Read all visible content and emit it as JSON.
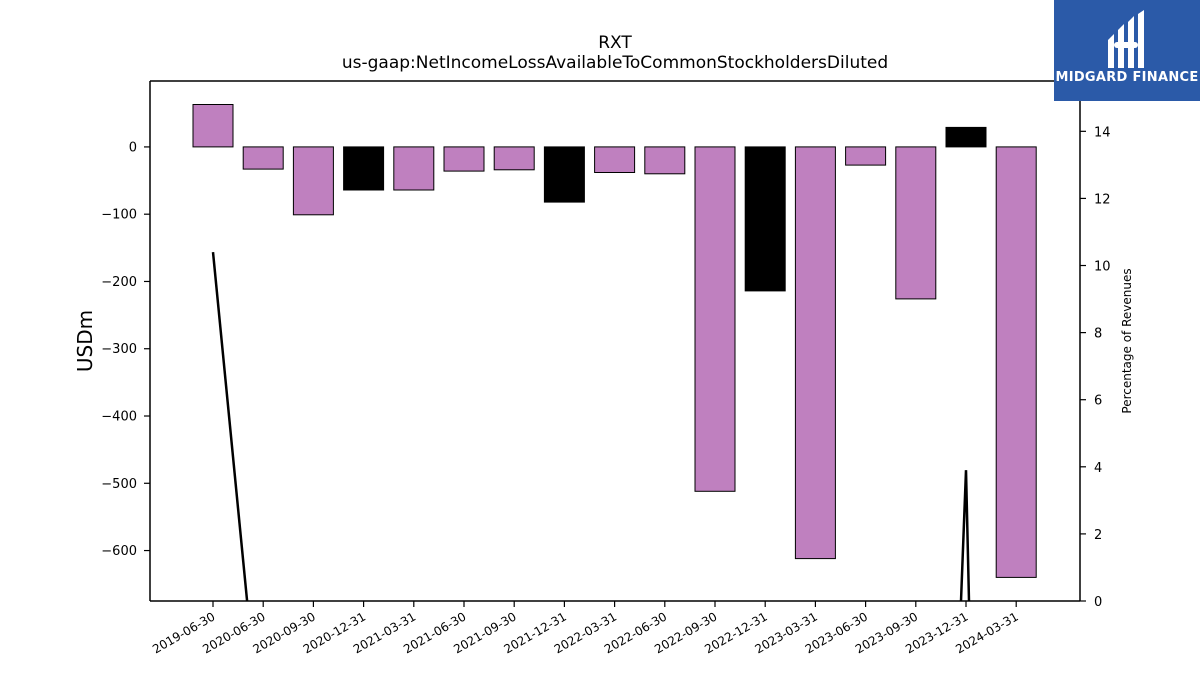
{
  "chart_data": {
    "type": "bar",
    "title": "RXT",
    "subtitle": "us-gaap:NetIncomeLossAvailableToCommonStockholdersDiluted",
    "ylabel": "USDm",
    "y2label": "Percentage of Revenues",
    "ylim": [
      -675,
      98
    ],
    "y2lim": [
      0,
      15.5
    ],
    "yticks": [
      0,
      -100,
      -200,
      -300,
      -400,
      -500,
      -600
    ],
    "y2ticks": [
      0,
      2,
      4,
      6,
      8,
      10,
      12,
      14
    ],
    "categories": [
      "2019-06-30",
      "2020-06-30",
      "2020-09-30",
      "2020-12-31",
      "2021-03-31",
      "2021-06-30",
      "2021-09-30",
      "2021-12-31",
      "2022-03-31",
      "2022-06-30",
      "2022-09-30",
      "2022-12-31",
      "2023-03-31",
      "2023-06-30",
      "2023-09-30",
      "2023-12-31",
      "2024-03-31"
    ],
    "values": [
      63,
      -33,
      -101,
      -64,
      -64,
      -36,
      -34,
      -82,
      -38,
      -40,
      -512,
      -214,
      -612,
      -27,
      -226,
      29,
      -640
    ],
    "bar_colors": [
      "#bf80bf",
      "#bf80bf",
      "#bf80bf",
      "#000000",
      "#bf80bf",
      "#bf80bf",
      "#bf80bf",
      "#000000",
      "#bf80bf",
      "#bf80bf",
      "#bf80bf",
      "#000000",
      "#bf80bf",
      "#bf80bf",
      "#bf80bf",
      "#000000",
      "#bf80bf"
    ],
    "line_series": {
      "segments": [
        [
          [
            0,
            10.4
          ],
          [
            0.68,
            0
          ]
        ],
        [
          [
            14.9,
            0
          ],
          [
            15.0,
            3.9
          ],
          [
            15.06,
            0
          ]
        ]
      ]
    },
    "grid": false,
    "legend": "none"
  },
  "brand": {
    "name": "MIDGARD FINANCE",
    "bg_color": "#2b5aa8"
  }
}
